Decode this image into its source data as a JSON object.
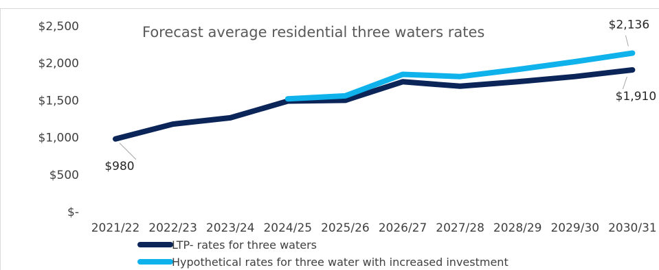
{
  "chart_data": {
    "type": "line",
    "title": "Forecast average residential three waters rates",
    "xlabel": "",
    "ylabel": "",
    "categories": [
      "2021/22",
      "2022/23",
      "2023/24",
      "2024/25",
      "2025/26",
      "2026/27",
      "2027/28",
      "2028/29",
      "2029/30",
      "2030/31"
    ],
    "y_tick_labels": [
      "$2,500",
      "$2,000",
      "$1,500",
      "$1,000",
      "$500",
      "$-"
    ],
    "y_tick_values": [
      2500,
      2000,
      1500,
      1000,
      500,
      0
    ],
    "ylim": [
      0,
      2500
    ],
    "grid": false,
    "legend_position": "bottom-left",
    "series": [
      {
        "name": "LTP- rates for three waters",
        "color": "#0b2559",
        "values": [
          980,
          1180,
          1265,
          1490,
          1500,
          1750,
          1690,
          1750,
          1820,
          1910
        ]
      },
      {
        "name": "Hypothetical rates for three water with increased investment",
        "color": "#10b2ec",
        "values": [
          null,
          null,
          null,
          1520,
          1560,
          1850,
          1820,
          1915,
          2020,
          2136
        ]
      }
    ],
    "data_labels": [
      {
        "text": "$980",
        "series": 0,
        "index": 0
      },
      {
        "text": "$1,910",
        "series": 0,
        "index": 9
      },
      {
        "text": "$2,136",
        "series": 1,
        "index": 9
      }
    ]
  }
}
